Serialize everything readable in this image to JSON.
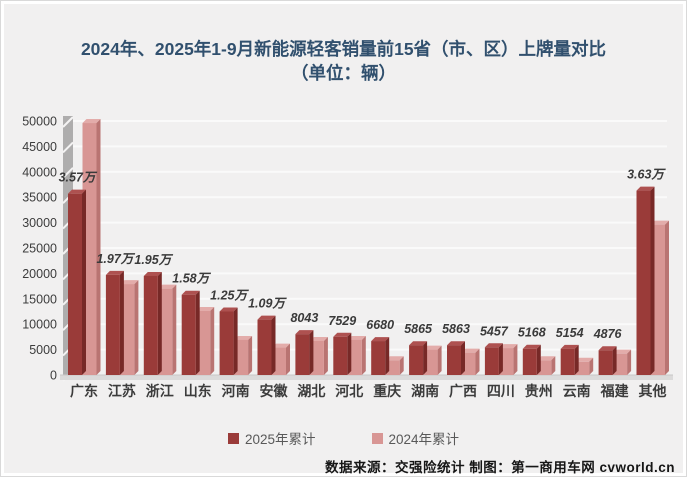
{
  "title": {
    "line1": "2024年、2025年1-9月新能源轻客销量前15省（市、区）上牌量对比",
    "line2": "（单位：辆）"
  },
  "footer": {
    "text": "数据来源：交强险统计 制图：第一商用车网 cvworld.cn"
  },
  "colors": {
    "background": "#f1f0f0",
    "title": "#31506e",
    "gridline": "#fafafa",
    "wall": "#aeadad",
    "floor": "#dbdada",
    "accent_2025": "#9a3b39",
    "accent_2024": "#d89694"
  },
  "chart_data": {
    "type": "bar",
    "title": "2024年、2025年1-9月新能源轻客销量前15省（市、区）上牌量对比（单位：辆）",
    "categories": [
      "广东",
      "江苏",
      "浙江",
      "山东",
      "河南",
      "安徽",
      "湖北",
      "河北",
      "重庆",
      "湖南",
      "广西",
      "四川",
      "贵州",
      "云南",
      "福建",
      "其他"
    ],
    "series": [
      {
        "name": "2025年累计",
        "values": [
          35700,
          19700,
          19500,
          15800,
          12500,
          10900,
          8043,
          7529,
          6680,
          5865,
          5863,
          5457,
          5168,
          5154,
          4876,
          36300
        ],
        "labels": [
          "3.57万",
          "1.97万",
          "1.95万",
          "1.58万",
          "1.25万",
          "1.09万",
          "8043",
          "7529",
          "6680",
          "5865",
          "5863",
          "5457",
          "5168",
          "5154",
          "4876",
          "3.63万"
        ],
        "color_front": "#9a3b39",
        "color_side": "#772927",
        "color_top": "#ae5150"
      },
      {
        "name": "2024年累计",
        "values": [
          49600,
          17900,
          17000,
          12600,
          6900,
          5400,
          6700,
          6900,
          2900,
          5000,
          4400,
          5300,
          2900,
          2600,
          4200,
          29600
        ],
        "labels": [],
        "color_front": "#d89694",
        "color_side": "#b97472",
        "color_top": "#e3acaa"
      }
    ],
    "xlabel": "",
    "ylabel": "",
    "unit": "辆",
    "ylim": [
      0,
      50000
    ],
    "ytick_step": 5000,
    "grid": true,
    "legend_position": "bottom",
    "style": "3d-clustered-column"
  }
}
